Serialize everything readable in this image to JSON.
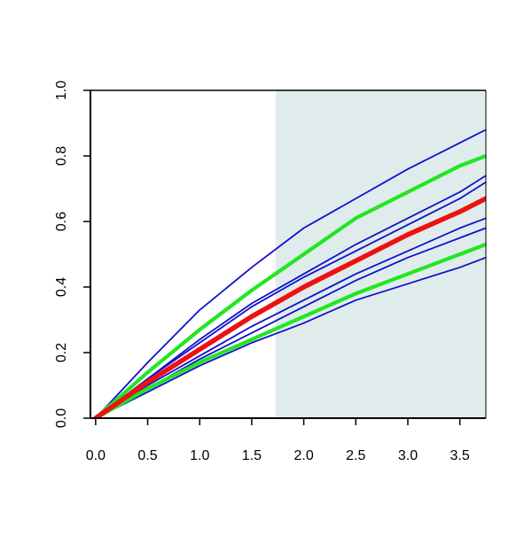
{
  "chart_data": {
    "type": "line",
    "title": "",
    "xlabel": "",
    "ylabel": "",
    "xlim": [
      -0.05,
      3.75
    ],
    "ylim": [
      0.0,
      1.0
    ],
    "x_ticks": [
      "0.0",
      "0.5",
      "1.0",
      "1.5",
      "2.0",
      "2.5",
      "3.0",
      "3.5"
    ],
    "y_ticks": [
      "0.0",
      "0.2",
      "0.4",
      "0.6",
      "0.8",
      "1.0"
    ],
    "shaded_region": {
      "x_from": 1.73,
      "x_to": 3.75,
      "color": "#e0ecec"
    },
    "grid": false,
    "legend": "none",
    "series": [
      {
        "color": "#1010cc",
        "width": "thin",
        "x": [
          0,
          0.5,
          1.0,
          1.5,
          2.0,
          2.5,
          3.0,
          3.5,
          3.75
        ],
        "y": [
          0,
          0.17,
          0.33,
          0.46,
          0.58,
          0.67,
          0.76,
          0.84,
          0.88
        ]
      },
      {
        "color": "#1010cc",
        "width": "thin",
        "x": [
          0,
          0.5,
          1.0,
          1.5,
          2.0,
          2.5,
          3.0,
          3.5,
          3.75
        ],
        "y": [
          0,
          0.12,
          0.24,
          0.35,
          0.44,
          0.53,
          0.61,
          0.69,
          0.74
        ]
      },
      {
        "color": "#1010cc",
        "width": "thin",
        "x": [
          0,
          0.5,
          1.0,
          1.5,
          2.0,
          2.5,
          3.0,
          3.5,
          3.75
        ],
        "y": [
          0,
          0.12,
          0.23,
          0.34,
          0.43,
          0.51,
          0.59,
          0.67,
          0.72
        ]
      },
      {
        "color": "#1010cc",
        "width": "thin",
        "x": [
          0,
          0.5,
          1.0,
          1.5,
          2.0,
          2.5,
          3.0,
          3.5,
          3.75
        ],
        "y": [
          0,
          0.1,
          0.19,
          0.28,
          0.36,
          0.44,
          0.51,
          0.58,
          0.61
        ]
      },
      {
        "color": "#1010cc",
        "width": "thin",
        "x": [
          0,
          0.5,
          1.0,
          1.5,
          2.0,
          2.5,
          3.0,
          3.5,
          3.75
        ],
        "y": [
          0,
          0.09,
          0.18,
          0.26,
          0.34,
          0.42,
          0.49,
          0.55,
          0.58
        ]
      },
      {
        "color": "#1010cc",
        "width": "thin",
        "x": [
          0,
          0.5,
          1.0,
          1.5,
          2.0,
          2.5,
          3.0,
          3.5,
          3.75
        ],
        "y": [
          0,
          0.08,
          0.16,
          0.23,
          0.29,
          0.36,
          0.41,
          0.46,
          0.49
        ]
      },
      {
        "color": "#22e622",
        "width": "thick",
        "x": [
          0,
          0.5,
          1.0,
          1.5,
          2.0,
          2.5,
          3.0,
          3.5,
          3.75
        ],
        "y": [
          0,
          0.14,
          0.27,
          0.39,
          0.5,
          0.61,
          0.69,
          0.77,
          0.8
        ]
      },
      {
        "color": "#22e622",
        "width": "thick",
        "x": [
          0,
          0.5,
          1.0,
          1.5,
          2.0,
          2.5,
          3.0,
          3.5,
          3.75
        ],
        "y": [
          0,
          0.09,
          0.17,
          0.24,
          0.31,
          0.38,
          0.44,
          0.5,
          0.53
        ]
      },
      {
        "color": "#ee1111",
        "width": "thickest",
        "x": [
          0,
          0.5,
          1.0,
          1.5,
          2.0,
          2.5,
          3.0,
          3.5,
          3.75
        ],
        "y": [
          0,
          0.11,
          0.21,
          0.31,
          0.4,
          0.48,
          0.56,
          0.63,
          0.67
        ]
      }
    ]
  }
}
